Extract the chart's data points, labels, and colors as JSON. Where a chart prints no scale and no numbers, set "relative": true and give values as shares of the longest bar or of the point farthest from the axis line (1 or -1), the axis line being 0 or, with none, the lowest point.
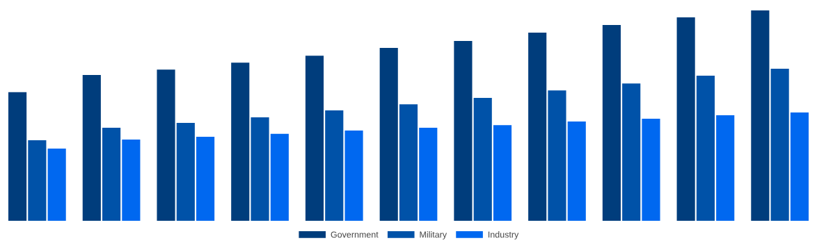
{
  "chart_data": {
    "type": "bar",
    "relative": true,
    "legend": "bottom",
    "grid": false,
    "categories": [
      null,
      null,
      null,
      null,
      null,
      null,
      null,
      null,
      null,
      null,
      null
    ],
    "series": [
      {
        "name": "Government",
        "color": "#003d7c",
        "values": [
          0.611,
          0.693,
          0.719,
          0.752,
          0.785,
          0.822,
          0.855,
          0.894,
          0.931,
          0.967,
          1
        ]
      },
      {
        "name": "Military",
        "color": "#0052a8",
        "values": [
          0.383,
          0.442,
          0.465,
          0.492,
          0.525,
          0.554,
          0.584,
          0.62,
          0.653,
          0.69,
          0.723
        ]
      },
      {
        "name": "Industry",
        "color": "#0068f0",
        "values": [
          0.343,
          0.386,
          0.399,
          0.413,
          0.429,
          0.442,
          0.455,
          0.472,
          0.485,
          0.502,
          0.515
        ]
      }
    ]
  }
}
